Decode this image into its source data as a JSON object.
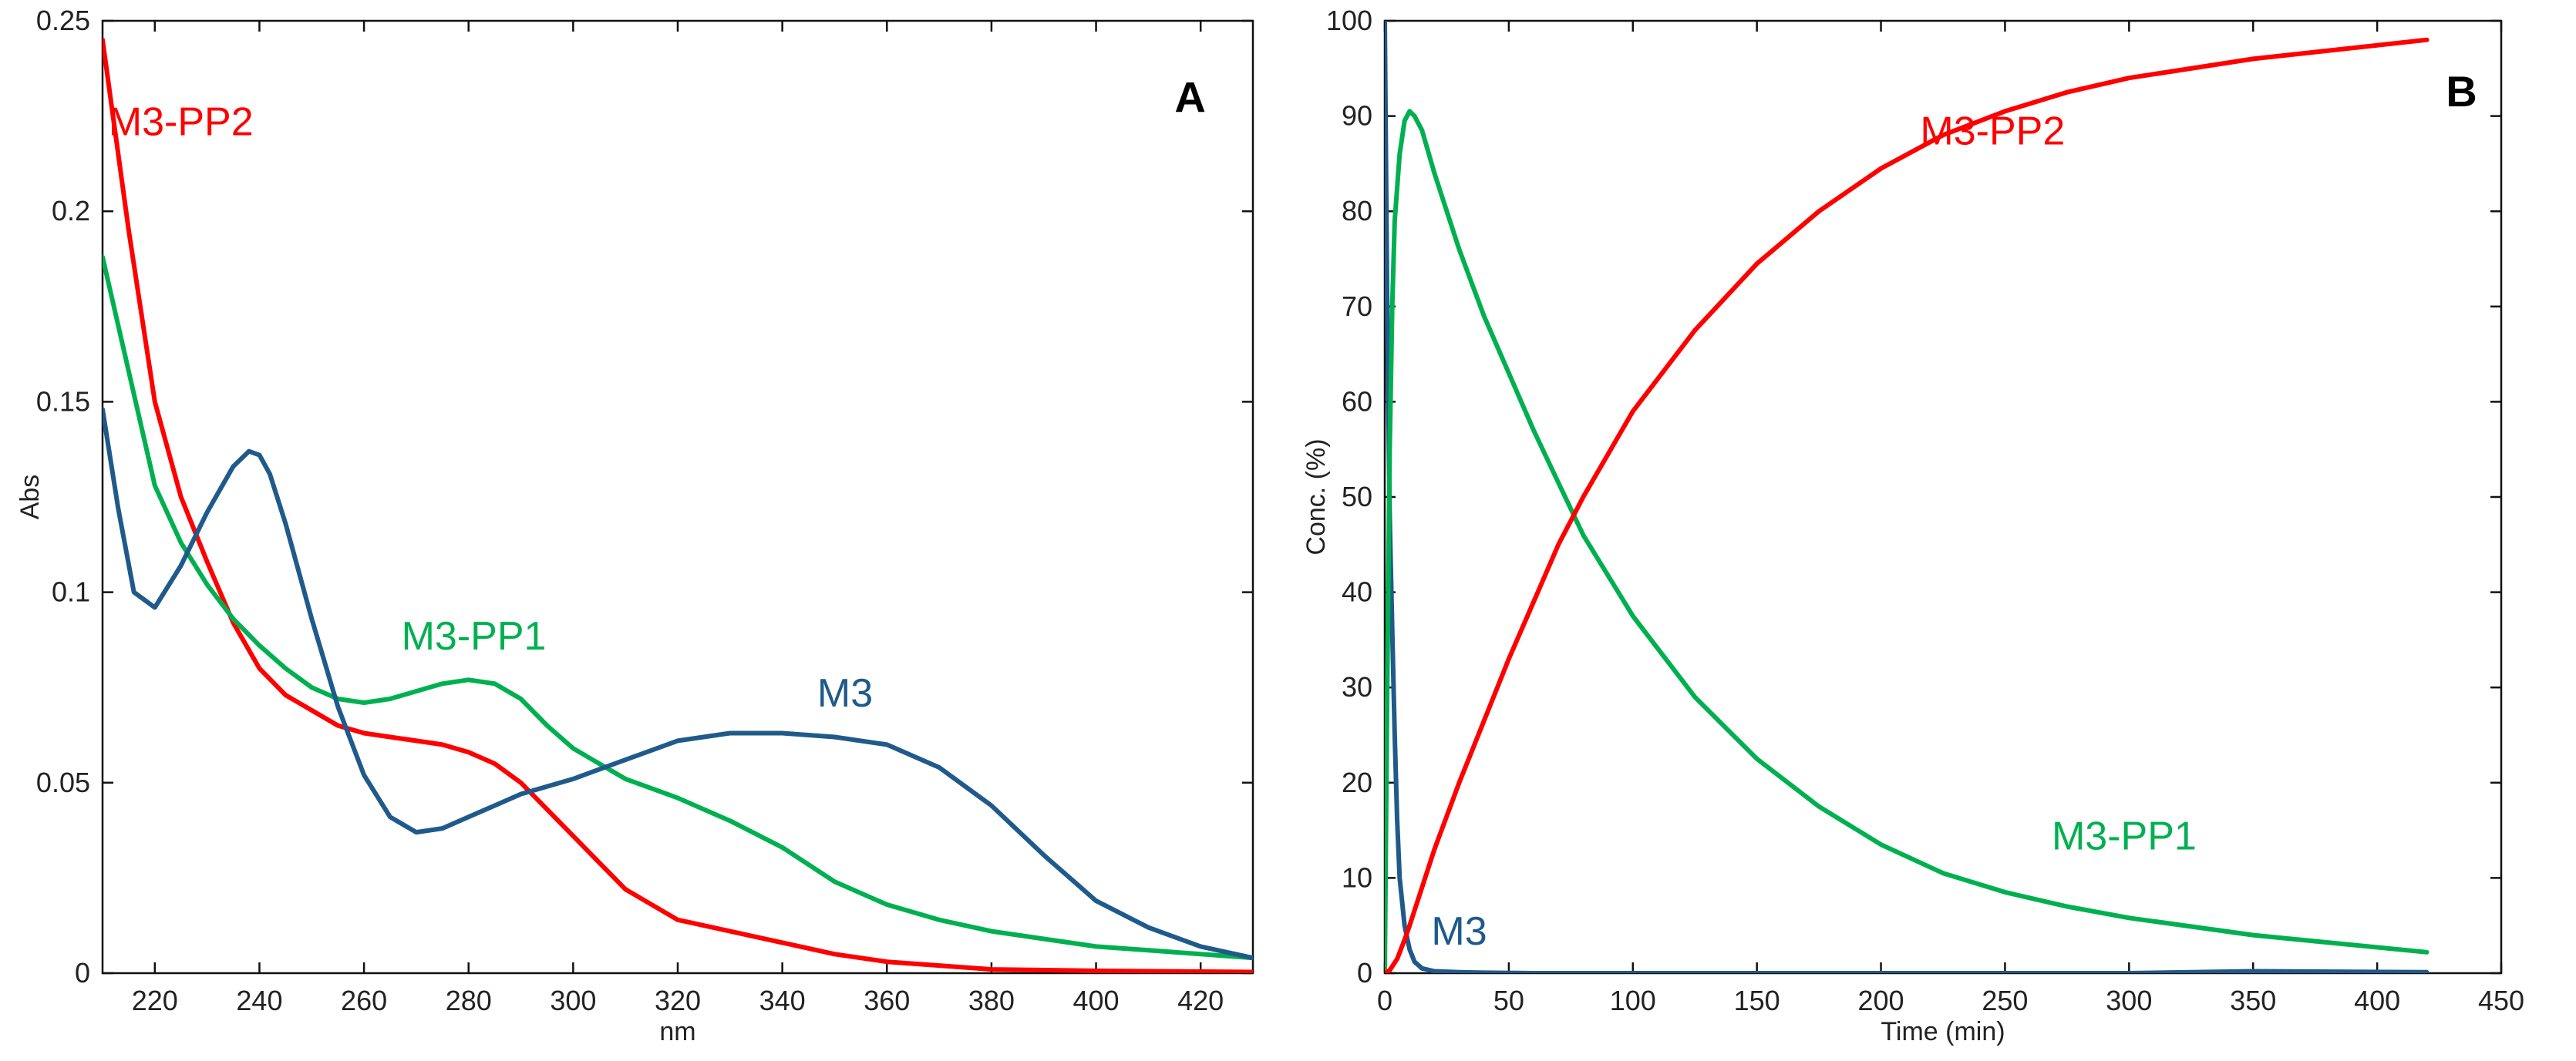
{
  "chart_data": [
    {
      "type": "line",
      "panel": "A",
      "xlabel": "nm",
      "ylabel": "Abs",
      "xlim": [
        210,
        430
      ],
      "ylim": [
        0,
        0.25
      ],
      "xticks": [
        220,
        240,
        260,
        280,
        300,
        320,
        340,
        360,
        380,
        400,
        420
      ],
      "yticks": [
        0,
        0.05,
        0.1,
        0.15,
        0.2,
        0.25
      ],
      "ytick_labels": [
        "0",
        "0.05",
        "0.1",
        "0.15",
        "0.2",
        "0.25"
      ],
      "series": [
        {
          "name": "M3-PP2",
          "color": "#ff0000",
          "x": [
            210,
            215,
            220,
            225,
            230,
            235,
            240,
            245,
            250,
            255,
            260,
            265,
            270,
            275,
            280,
            285,
            290,
            295,
            300,
            305,
            310,
            320,
            330,
            340,
            350,
            360,
            370,
            380,
            390,
            400,
            410,
            420,
            430
          ],
          "y": [
            0.245,
            0.195,
            0.15,
            0.125,
            0.108,
            0.092,
            0.08,
            0.073,
            0.069,
            0.065,
            0.063,
            0.062,
            0.061,
            0.06,
            0.058,
            0.055,
            0.05,
            0.043,
            0.036,
            0.029,
            0.022,
            0.014,
            0.011,
            0.008,
            0.005,
            0.003,
            0.002,
            0.001,
            0.0008,
            0.0006,
            0.0005,
            0.0004,
            0.0003
          ]
        },
        {
          "name": "M3-PP1",
          "color": "#00b050",
          "x": [
            210,
            215,
            220,
            225,
            230,
            235,
            240,
            245,
            250,
            255,
            260,
            265,
            270,
            275,
            280,
            285,
            290,
            295,
            300,
            305,
            310,
            320,
            330,
            340,
            350,
            360,
            370,
            380,
            390,
            400,
            410,
            420,
            430
          ],
          "y": [
            0.188,
            0.158,
            0.128,
            0.113,
            0.102,
            0.093,
            0.086,
            0.08,
            0.075,
            0.072,
            0.071,
            0.072,
            0.074,
            0.076,
            0.077,
            0.076,
            0.072,
            0.065,
            0.059,
            0.055,
            0.051,
            0.046,
            0.04,
            0.033,
            0.024,
            0.018,
            0.014,
            0.011,
            0.009,
            0.007,
            0.006,
            0.005,
            0.004
          ]
        },
        {
          "name": "M3",
          "color": "#1f5a8a",
          "x": [
            210,
            213,
            216,
            220,
            225,
            230,
            235,
            238,
            240,
            242,
            245,
            250,
            255,
            260,
            265,
            270,
            275,
            280,
            285,
            290,
            300,
            310,
            320,
            330,
            340,
            350,
            360,
            370,
            380,
            390,
            400,
            410,
            420,
            430
          ],
          "y": [
            0.148,
            0.122,
            0.1,
            0.096,
            0.107,
            0.121,
            0.133,
            0.137,
            0.136,
            0.131,
            0.118,
            0.093,
            0.07,
            0.052,
            0.041,
            0.037,
            0.038,
            0.041,
            0.044,
            0.047,
            0.051,
            0.056,
            0.061,
            0.063,
            0.063,
            0.062,
            0.06,
            0.054,
            0.044,
            0.031,
            0.019,
            0.012,
            0.007,
            0.004
          ]
        }
      ],
      "annotations": [
        {
          "text": "M3-PP2",
          "x": 225,
          "y": 0.22,
          "color": "#ff0000"
        },
        {
          "text": "M3-PP1",
          "x": 281,
          "y": 0.085,
          "color": "#00b050"
        },
        {
          "text": "M3",
          "x": 352,
          "y": 0.07,
          "color": "#1f5a8a"
        },
        {
          "text": "A",
          "x": 418,
          "y": 0.226,
          "color": "#000000",
          "kind": "panel-letter"
        }
      ]
    },
    {
      "type": "line",
      "panel": "B",
      "xlabel": "Time (min)",
      "ylabel": "Conc. (%)",
      "xlim": [
        0,
        450
      ],
      "ylim": [
        0,
        100
      ],
      "xticks": [
        0,
        50,
        100,
        150,
        200,
        250,
        300,
        350,
        400,
        450
      ],
      "yticks": [
        0,
        10,
        20,
        30,
        40,
        50,
        60,
        70,
        80,
        90,
        100
      ],
      "ytick_labels": [
        "0",
        "10",
        "20",
        "30",
        "40",
        "50",
        "60",
        "70",
        "80",
        "90",
        "100"
      ],
      "series": [
        {
          "name": "M3",
          "color": "#1f5a8a",
          "x": [
            0,
            1,
            2,
            3,
            4,
            5,
            6,
            8,
            10,
            12,
            15,
            20,
            30,
            40,
            60,
            100,
            200,
            300,
            350,
            420
          ],
          "y": [
            100,
            70,
            48,
            36,
            25,
            16,
            10,
            5,
            2.5,
            1.2,
            0.5,
            0.2,
            0.1,
            0.05,
            0,
            0,
            0,
            0,
            0.2,
            0.1
          ]
        },
        {
          "name": "M3-PP1",
          "color": "#00b050",
          "x": [
            0,
            1,
            2,
            3,
            4,
            6,
            8,
            10,
            12,
            15,
            20,
            30,
            40,
            50,
            60,
            70,
            80,
            100,
            125,
            150,
            175,
            200,
            225,
            250,
            275,
            300,
            350,
            420
          ],
          "y": [
            0,
            30,
            55,
            70,
            79,
            86,
            89.5,
            90.5,
            90,
            88.5,
            84,
            76,
            69,
            63,
            57,
            51.5,
            46,
            37.5,
            29,
            22.5,
            17.5,
            13.5,
            10.5,
            8.5,
            7,
            5.8,
            4,
            2.2
          ]
        },
        {
          "name": "M3-PP2",
          "color": "#ff0000",
          "x": [
            0,
            2,
            5,
            8,
            10,
            15,
            20,
            30,
            40,
            50,
            60,
            70,
            80,
            100,
            125,
            150,
            175,
            200,
            225,
            250,
            275,
            300,
            350,
            420
          ],
          "y": [
            0,
            0.3,
            1.5,
            3.5,
            5,
            9,
            13,
            20,
            26.5,
            33,
            39,
            45,
            50,
            59,
            67.5,
            74.5,
            80,
            84.5,
            88,
            90.5,
            92.5,
            94,
            96,
            98
          ]
        }
      ],
      "annotations": [
        {
          "text": "M3-PP2",
          "x": 245,
          "y": 87,
          "color": "#ff0000"
        },
        {
          "text": "M3-PP1",
          "x": 298,
          "y": 13,
          "color": "#00b050"
        },
        {
          "text": "M3",
          "x": 30,
          "y": 3,
          "color": "#1f5a8a"
        },
        {
          "text": "B",
          "x": 434,
          "y": 91,
          "color": "#000000",
          "kind": "panel-letter"
        }
      ]
    }
  ]
}
